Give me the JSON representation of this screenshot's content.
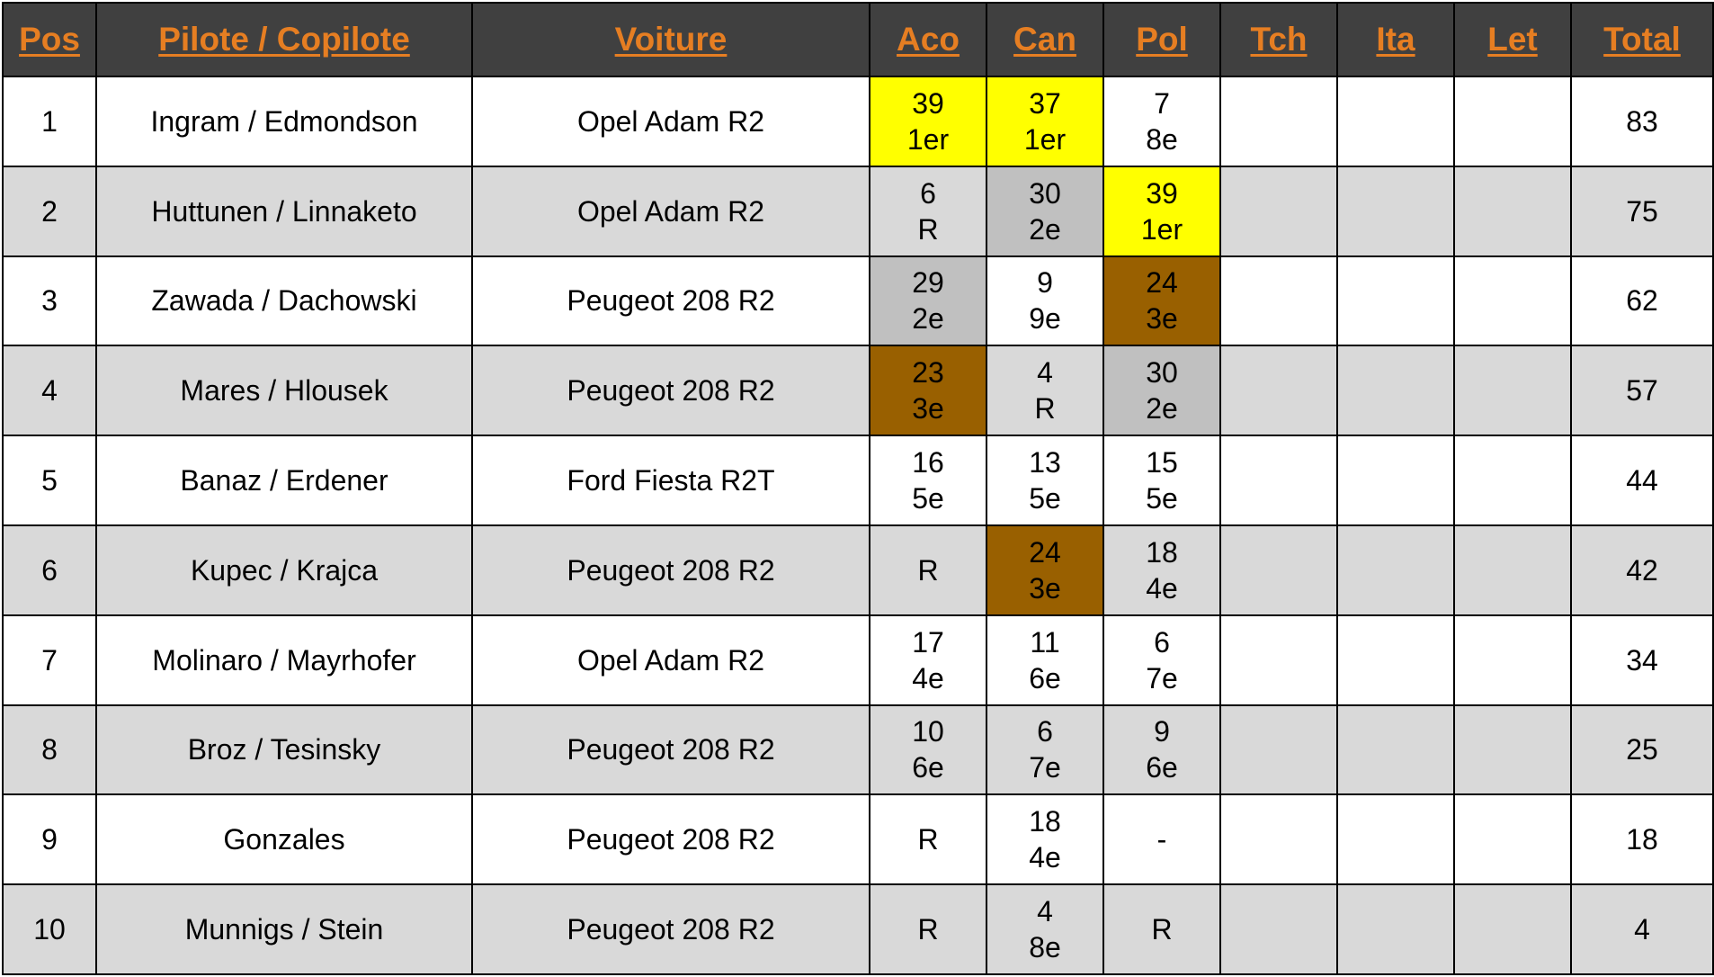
{
  "table": {
    "headers": [
      "Pos",
      "Pilote / Copilote",
      "Voiture",
      "Aco",
      "Can",
      "Pol",
      "Tch",
      "Ita",
      "Let",
      "Total"
    ],
    "colors": {
      "header_bg": "#404040",
      "header_text": "#e67e22",
      "row_alt_bg": "#d9d9d9",
      "first_place": "#ffff00",
      "second_place": "#c0c0c0",
      "third_place": "#996000"
    },
    "rows": [
      {
        "pos": "1",
        "crew": "Ingram / Edmondson",
        "car": "Opel Adam R2",
        "rallies": [
          {
            "pts": "39",
            "res": "1er",
            "podium": 1
          },
          {
            "pts": "37",
            "res": "1er",
            "podium": 1
          },
          {
            "pts": "7",
            "res": "8e",
            "podium": 0
          },
          {
            "pts": "",
            "res": "",
            "podium": 0
          },
          {
            "pts": "",
            "res": "",
            "podium": 0
          },
          {
            "pts": "",
            "res": "",
            "podium": 0
          }
        ],
        "total": "83"
      },
      {
        "pos": "2",
        "crew": "Huttunen / Linnaketo",
        "car": "Opel Adam R2",
        "rallies": [
          {
            "pts": "6",
            "res": "R",
            "podium": 0
          },
          {
            "pts": "30",
            "res": "2e",
            "podium": 2
          },
          {
            "pts": "39",
            "res": "1er",
            "podium": 1
          },
          {
            "pts": "",
            "res": "",
            "podium": 0
          },
          {
            "pts": "",
            "res": "",
            "podium": 0
          },
          {
            "pts": "",
            "res": "",
            "podium": 0
          }
        ],
        "total": "75"
      },
      {
        "pos": "3",
        "crew": "Zawada / Dachowski",
        "car": "Peugeot 208 R2",
        "rallies": [
          {
            "pts": "29",
            "res": "2e",
            "podium": 2
          },
          {
            "pts": "9",
            "res": "9e",
            "podium": 0
          },
          {
            "pts": "24",
            "res": "3e",
            "podium": 3
          },
          {
            "pts": "",
            "res": "",
            "podium": 0
          },
          {
            "pts": "",
            "res": "",
            "podium": 0
          },
          {
            "pts": "",
            "res": "",
            "podium": 0
          }
        ],
        "total": "62"
      },
      {
        "pos": "4",
        "crew": "Mares / Hlousek",
        "car": "Peugeot 208 R2",
        "rallies": [
          {
            "pts": "23",
            "res": "3e",
            "podium": 3
          },
          {
            "pts": "4",
            "res": "R",
            "podium": 0
          },
          {
            "pts": "30",
            "res": "2e",
            "podium": 2
          },
          {
            "pts": "",
            "res": "",
            "podium": 0
          },
          {
            "pts": "",
            "res": "",
            "podium": 0
          },
          {
            "pts": "",
            "res": "",
            "podium": 0
          }
        ],
        "total": "57"
      },
      {
        "pos": "5",
        "crew": "Banaz / Erdener",
        "car": "Ford Fiesta R2T",
        "rallies": [
          {
            "pts": "16",
            "res": "5e",
            "podium": 0
          },
          {
            "pts": "13",
            "res": "5e",
            "podium": 0
          },
          {
            "pts": "15",
            "res": "5e",
            "podium": 0
          },
          {
            "pts": "",
            "res": "",
            "podium": 0
          },
          {
            "pts": "",
            "res": "",
            "podium": 0
          },
          {
            "pts": "",
            "res": "",
            "podium": 0
          }
        ],
        "total": "44"
      },
      {
        "pos": "6",
        "crew": "Kupec / Krajca",
        "car": "Peugeot 208 R2",
        "rallies": [
          {
            "pts": "R",
            "res": "",
            "podium": 0
          },
          {
            "pts": "24",
            "res": "3e",
            "podium": 3
          },
          {
            "pts": "18",
            "res": "4e",
            "podium": 0
          },
          {
            "pts": "",
            "res": "",
            "podium": 0
          },
          {
            "pts": "",
            "res": "",
            "podium": 0
          },
          {
            "pts": "",
            "res": "",
            "podium": 0
          }
        ],
        "total": "42"
      },
      {
        "pos": "7",
        "crew": "Molinaro / Mayrhofer",
        "car": "Opel Adam R2",
        "rallies": [
          {
            "pts": "17",
            "res": "4e",
            "podium": 0
          },
          {
            "pts": "11",
            "res": "6e",
            "podium": 0
          },
          {
            "pts": "6",
            "res": "7e",
            "podium": 0
          },
          {
            "pts": "",
            "res": "",
            "podium": 0
          },
          {
            "pts": "",
            "res": "",
            "podium": 0
          },
          {
            "pts": "",
            "res": "",
            "podium": 0
          }
        ],
        "total": "34"
      },
      {
        "pos": "8",
        "crew": "Broz / Tesinsky",
        "car": "Peugeot 208 R2",
        "rallies": [
          {
            "pts": "10",
            "res": "6e",
            "podium": 0
          },
          {
            "pts": "6",
            "res": "7e",
            "podium": 0
          },
          {
            "pts": "9",
            "res": "6e",
            "podium": 0
          },
          {
            "pts": "",
            "res": "",
            "podium": 0
          },
          {
            "pts": "",
            "res": "",
            "podium": 0
          },
          {
            "pts": "",
            "res": "",
            "podium": 0
          }
        ],
        "total": "25"
      },
      {
        "pos": "9",
        "crew": "Gonzales",
        "car": "Peugeot 208 R2",
        "rallies": [
          {
            "pts": "R",
            "res": "",
            "podium": 0
          },
          {
            "pts": "18",
            "res": "4e",
            "podium": 0
          },
          {
            "pts": "-",
            "res": "",
            "podium": 0
          },
          {
            "pts": "",
            "res": "",
            "podium": 0
          },
          {
            "pts": "",
            "res": "",
            "podium": 0
          },
          {
            "pts": "",
            "res": "",
            "podium": 0
          }
        ],
        "total": "18"
      },
      {
        "pos": "10",
        "crew": "Munnigs / Stein",
        "car": "Peugeot 208 R2",
        "rallies": [
          {
            "pts": "R",
            "res": "",
            "podium": 0
          },
          {
            "pts": "4",
            "res": "8e",
            "podium": 0
          },
          {
            "pts": "R",
            "res": "",
            "podium": 0
          },
          {
            "pts": "",
            "res": "",
            "podium": 0
          },
          {
            "pts": "",
            "res": "",
            "podium": 0
          },
          {
            "pts": "",
            "res": "",
            "podium": 0
          }
        ],
        "total": "4"
      }
    ]
  }
}
